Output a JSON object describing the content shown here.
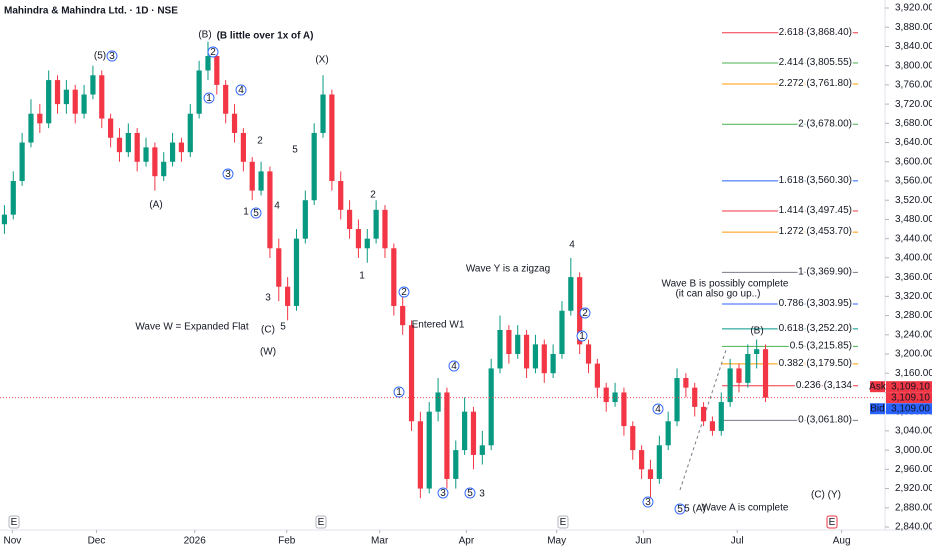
{
  "chart_data": {
    "type": "candlestick",
    "title": "Mahindra & Mahindra Ltd. · 1D · NSE",
    "xlim": [
      -0.5,
      99.5
    ],
    "xticks": [
      {
        "value": 0.9,
        "label": "Nov"
      },
      {
        "value": 10.4,
        "label": "Dec"
      },
      {
        "value": 21.5,
        "label": "2026"
      },
      {
        "value": 31.9,
        "label": "Feb"
      },
      {
        "value": 42.4,
        "label": "Mar"
      },
      {
        "value": 52.2,
        "label": "Apr"
      },
      {
        "value": 62.4,
        "label": "May"
      },
      {
        "value": 72.2,
        "label": "Jun"
      },
      {
        "value": 82.8,
        "label": "Jul"
      },
      {
        "value": 94.6,
        "label": "Aug"
      }
    ],
    "ylim": [
      2840,
      3920
    ],
    "yticks": [
      {
        "value": 3920,
        "label": "3,920.00"
      },
      {
        "value": 3880,
        "label": "3,880.00"
      },
      {
        "value": 3840,
        "label": "3,840.00"
      },
      {
        "value": 3800,
        "label": "3,800.00"
      },
      {
        "value": 3760,
        "label": "3,760.00"
      },
      {
        "value": 3720,
        "label": "3,720.00"
      },
      {
        "value": 3680,
        "label": "3,680.00"
      },
      {
        "value": 3640,
        "label": "3,640.00"
      },
      {
        "value": 3600,
        "label": "3,600.00"
      },
      {
        "value": 3560,
        "label": "3,560.00"
      },
      {
        "value": 3520,
        "label": "3,520.00"
      },
      {
        "value": 3480,
        "label": "3,480.00"
      },
      {
        "value": 3440,
        "label": "3,440.00"
      },
      {
        "value": 3400,
        "label": "3,400.00"
      },
      {
        "value": 3360,
        "label": "3,360.00"
      },
      {
        "value": 3320,
        "label": "3,320.00"
      },
      {
        "value": 3280,
        "label": "3,280.00"
      },
      {
        "value": 3240,
        "label": "3,240.00"
      },
      {
        "value": 3200,
        "label": "3,200.00"
      },
      {
        "value": 3160,
        "label": "3,160.00"
      },
      {
        "value": 3120,
        "label": "3,120.00"
      },
      {
        "value": 3080,
        "label": "3,080.00"
      },
      {
        "value": 3040,
        "label": "3,040.00"
      },
      {
        "value": 3000,
        "label": "3,000.00"
      },
      {
        "value": 2960,
        "label": "2,960.00"
      },
      {
        "value": 2920,
        "label": "2,920.00"
      },
      {
        "value": 2880,
        "label": "2,880.00"
      },
      {
        "value": 2840,
        "label": "2,840.00"
      }
    ],
    "up_color": "#089981",
    "down_color": "#f23645",
    "open": [
      3470,
      3490,
      3560,
      3640,
      3700,
      3680,
      3770,
      3720,
      3750,
      3700,
      3740,
      3780,
      3690,
      3650,
      3620,
      3660,
      3600,
      3630,
      3570,
      3600,
      3640,
      3620,
      3700,
      3790,
      3820,
      3760,
      3700,
      3660,
      3600,
      3540,
      3580,
      3420,
      3340,
      3300,
      3440,
      3520,
      3660,
      3740,
      3560,
      3500,
      3460,
      3420,
      3440,
      3500,
      3420,
      3300,
      3260,
      3060,
      2920,
      3080,
      3120,
      2940,
      3000,
      3080,
      2990,
      3010,
      3170,
      3250,
      3200,
      3240,
      3170,
      3220,
      3160,
      3200,
      3290,
      3360,
      3220,
      3180,
      3130,
      3100,
      3120,
      3050,
      3000,
      2960,
      2940,
      3010,
      3060,
      3150,
      3130,
      3090,
      3060,
      3040,
      3100,
      3170,
      3140,
      3200,
      3210
    ],
    "high": [
      3510,
      3580,
      3660,
      3730,
      3720,
      3790,
      3780,
      3770,
      3760,
      3760,
      3800,
      3790,
      3700,
      3670,
      3680,
      3670,
      3650,
      3640,
      3620,
      3660,
      3650,
      3720,
      3810,
      3850,
      3830,
      3770,
      3720,
      3670,
      3610,
      3600,
      3590,
      3440,
      3360,
      3460,
      3540,
      3680,
      3780,
      3750,
      3580,
      3520,
      3480,
      3460,
      3520,
      3510,
      3430,
      3320,
      3270,
      3080,
      3100,
      3150,
      3130,
      3020,
      3110,
      3090,
      3040,
      3190,
      3280,
      3260,
      3260,
      3250,
      3240,
      3230,
      3220,
      3310,
      3400,
      3370,
      3230,
      3190,
      3140,
      3140,
      3130,
      3060,
      3010,
      2980,
      3030,
      3080,
      3170,
      3160,
      3140,
      3100,
      3070,
      3120,
      3190,
      3180,
      3220,
      3230,
      3220
    ],
    "low": [
      3450,
      3480,
      3550,
      3630,
      3660,
      3670,
      3700,
      3700,
      3680,
      3690,
      3730,
      3670,
      3630,
      3600,
      3610,
      3580,
      3590,
      3540,
      3560,
      3590,
      3600,
      3610,
      3690,
      3770,
      3740,
      3680,
      3640,
      3580,
      3520,
      3530,
      3400,
      3310,
      3270,
      3290,
      3430,
      3510,
      3650,
      3540,
      3480,
      3440,
      3400,
      3390,
      3430,
      3400,
      3280,
      3240,
      3040,
      2900,
      2910,
      3060,
      2920,
      2920,
      2990,
      2960,
      2970,
      3000,
      3160,
      3180,
      3190,
      3150,
      3160,
      3140,
      3150,
      3190,
      3280,
      3200,
      3160,
      3110,
      3080,
      3090,
      3030,
      2980,
      2940,
      2900,
      2930,
      3000,
      3050,
      3110,
      3070,
      3050,
      3030,
      3030,
      3090,
      3120,
      3130,
      3170,
      3100
    ],
    "close": [
      3490,
      3560,
      3640,
      3700,
      3680,
      3770,
      3720,
      3750,
      3700,
      3740,
      3780,
      3690,
      3650,
      3620,
      3660,
      3600,
      3630,
      3570,
      3600,
      3640,
      3620,
      3700,
      3790,
      3820,
      3760,
      3700,
      3660,
      3600,
      3540,
      3580,
      3420,
      3340,
      3300,
      3440,
      3520,
      3660,
      3740,
      3560,
      3500,
      3460,
      3420,
      3440,
      3500,
      3420,
      3300,
      3260,
      3060,
      2920,
      3080,
      3120,
      2940,
      3000,
      3080,
      2990,
      3010,
      3170,
      3250,
      3200,
      3240,
      3170,
      3220,
      3160,
      3200,
      3290,
      3360,
      3220,
      3180,
      3130,
      3100,
      3120,
      3050,
      3000,
      2960,
      2940,
      3010,
      3060,
      3150,
      3130,
      3090,
      3060,
      3040,
      3100,
      3170,
      3140,
      3200,
      3210,
      3109.1
    ],
    "fib_levels": [
      {
        "label": "2.618 (3,868.40)",
        "value": 3868.4,
        "color": "#f23645"
      },
      {
        "label": "2.414 (3,805.55)",
        "value": 3805.55,
        "color": "#4caf50"
      },
      {
        "label": "2.272 (3,761.80)",
        "value": 3761.8,
        "color": "#ff9800"
      },
      {
        "label": "2 (3,678.00)",
        "value": 3678.0,
        "color": "#4caf50"
      },
      {
        "label": "1.618 (3,560.30)",
        "value": 3560.3,
        "color": "#2962ff"
      },
      {
        "label": "1.414 (3,497.45)",
        "value": 3497.45,
        "color": "#f23645"
      },
      {
        "label": "1.272 (3,453.70)",
        "value": 3453.7,
        "color": "#ff9800"
      },
      {
        "label": "1 (3,369.90)",
        "value": 3369.9,
        "color": "#787b86"
      },
      {
        "label": "0.786 (3,303.95)",
        "value": 3303.95,
        "color": "#2962ff"
      },
      {
        "label": "0.618 (3,252.20)",
        "value": 3252.2,
        "color": "#009688"
      },
      {
        "label": "0.5 (3,215.85)",
        "value": 3215.85,
        "color": "#4caf50"
      },
      {
        "label": "0.382 (3,179.50)",
        "value": 3179.5,
        "color": "#ff9800"
      },
      {
        "label": "0.236 (3,134",
        "value": 3134,
        "color": "#f23645"
      },
      {
        "label": "0 (3,061.80)",
        "value": 3061.8,
        "color": "#787b86"
      }
    ],
    "ask": {
      "tag": "Ask",
      "value": 3109.1,
      "label": "3,109.10"
    },
    "last": {
      "value": 3109.1,
      "label": "3,109.10"
    },
    "bid": {
      "tag": "Bid",
      "value": 3109.0,
      "label": "3,109.00"
    },
    "annotations": [
      "(5)",
      "3",
      "(B)",
      "(B little over 1x of A)",
      "2",
      "1",
      "4",
      "2",
      "3",
      "(X)",
      "(A)",
      "5",
      "4",
      "1",
      "5",
      "3",
      "(C)",
      "5",
      "(W)",
      "Wave W = Expanded Flat",
      "2",
      "1",
      "2",
      "Entered W1",
      "1",
      "4",
      "3",
      "5",
      "3",
      "Wave Y is a zigzag",
      "4",
      "2",
      "1",
      "3",
      "4",
      "5",
      "5 (A)",
      "Wave A is complete",
      "Wave B is possibly complete",
      "(it can also go up..)",
      "(B)",
      "(C) (Y)"
    ],
    "events": [
      "E",
      "E",
      "E",
      "E"
    ]
  }
}
